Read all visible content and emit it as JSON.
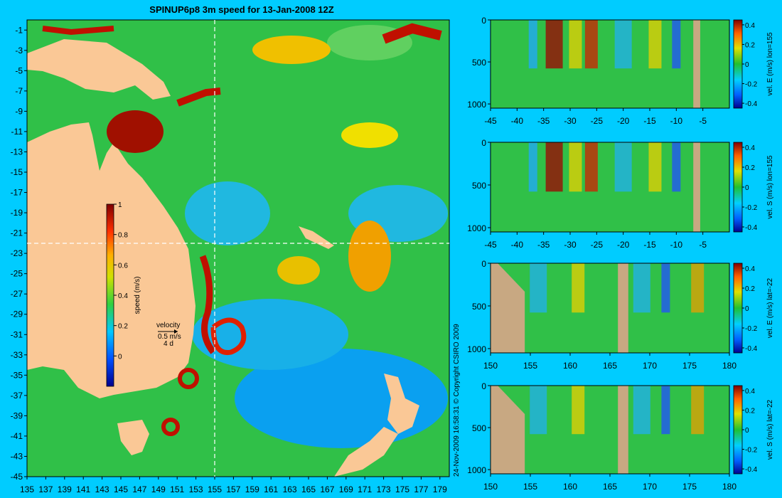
{
  "background_color": "#00ccff",
  "land_color": "#fac896",
  "section_land_color": "#c8a882",
  "copyright": "24-Nov-2009 16:58:31   © Copyright CSIRO 2009",
  "chart_data": [
    {
      "type": "heatmap",
      "title": "SPINUP6p8 3m speed for 13-Jan-2008 12Z",
      "x_ticks": [
        135,
        137,
        139,
        141,
        143,
        145,
        147,
        149,
        151,
        153,
        155,
        157,
        159,
        161,
        163,
        165,
        167,
        169,
        171,
        173,
        175,
        177,
        179
      ],
      "y_ticks": [
        -1,
        -3,
        -5,
        -7,
        -9,
        -11,
        -13,
        -15,
        -17,
        -19,
        -21,
        -23,
        -25,
        -27,
        -29,
        -31,
        -33,
        -35,
        -37,
        -39,
        -41,
        -43,
        -45
      ],
      "xlim": [
        135,
        180
      ],
      "ylim": [
        -45,
        0
      ],
      "crosshair": {
        "lon": 155,
        "lat": -22
      },
      "colorbar": {
        "label": "speed (m/s)",
        "ticks": [
          0,
          0.2,
          0.4,
          0.6,
          0.8,
          1
        ],
        "range": [
          -0.2,
          1
        ]
      },
      "velocity_key": {
        "label": "velocity",
        "speed": "0.5 m/s",
        "duration": "4 d"
      }
    },
    {
      "type": "heatmap",
      "name": "vel-e-lon155",
      "x_ticks": [
        -45,
        -40,
        -35,
        -30,
        -25,
        -20,
        -15,
        -10,
        -5
      ],
      "y_ticks": [
        0,
        500,
        1000
      ],
      "xlim": [
        -45,
        0
      ],
      "ylim": [
        1050,
        0
      ],
      "colorbar": {
        "label": "vel. E (m/s) lon=155",
        "ticks": [
          -0.4,
          -0.2,
          0,
          0.2,
          0.4
        ],
        "range": [
          -0.45,
          0.45
        ]
      }
    },
    {
      "type": "heatmap",
      "name": "vel-s-lon155",
      "x_ticks": [
        -45,
        -40,
        -35,
        -30,
        -25,
        -20,
        -15,
        -10,
        -5
      ],
      "y_ticks": [
        0,
        500,
        1000
      ],
      "xlim": [
        -45,
        0
      ],
      "ylim": [
        1050,
        0
      ],
      "colorbar": {
        "label": "vel. S (m/s) lon=155",
        "ticks": [
          -0.4,
          -0.2,
          0,
          0.2,
          0.4
        ],
        "range": [
          -0.45,
          0.45
        ]
      }
    },
    {
      "type": "heatmap",
      "name": "vel-e-lat-22",
      "x_ticks": [
        150,
        155,
        160,
        165,
        170,
        175,
        180
      ],
      "y_ticks": [
        0,
        500,
        1000
      ],
      "xlim": [
        150,
        180
      ],
      "ylim": [
        1050,
        0
      ],
      "colorbar": {
        "label": "vel. E (m/s) lat=-22",
        "ticks": [
          -0.4,
          -0.2,
          0,
          0.2,
          0.4
        ],
        "range": [
          -0.45,
          0.45
        ]
      }
    },
    {
      "type": "heatmap",
      "name": "vel-s-lat-22",
      "x_ticks": [
        150,
        155,
        160,
        165,
        170,
        175,
        180
      ],
      "y_ticks": [
        0,
        500,
        1000
      ],
      "xlim": [
        150,
        180
      ],
      "ylim": [
        1050,
        0
      ],
      "colorbar": {
        "label": "vel. S (m/s) lat=-22",
        "ticks": [
          -0.4,
          -0.2,
          0,
          0.2,
          0.4
        ],
        "range": [
          -0.45,
          0.45
        ]
      }
    }
  ]
}
